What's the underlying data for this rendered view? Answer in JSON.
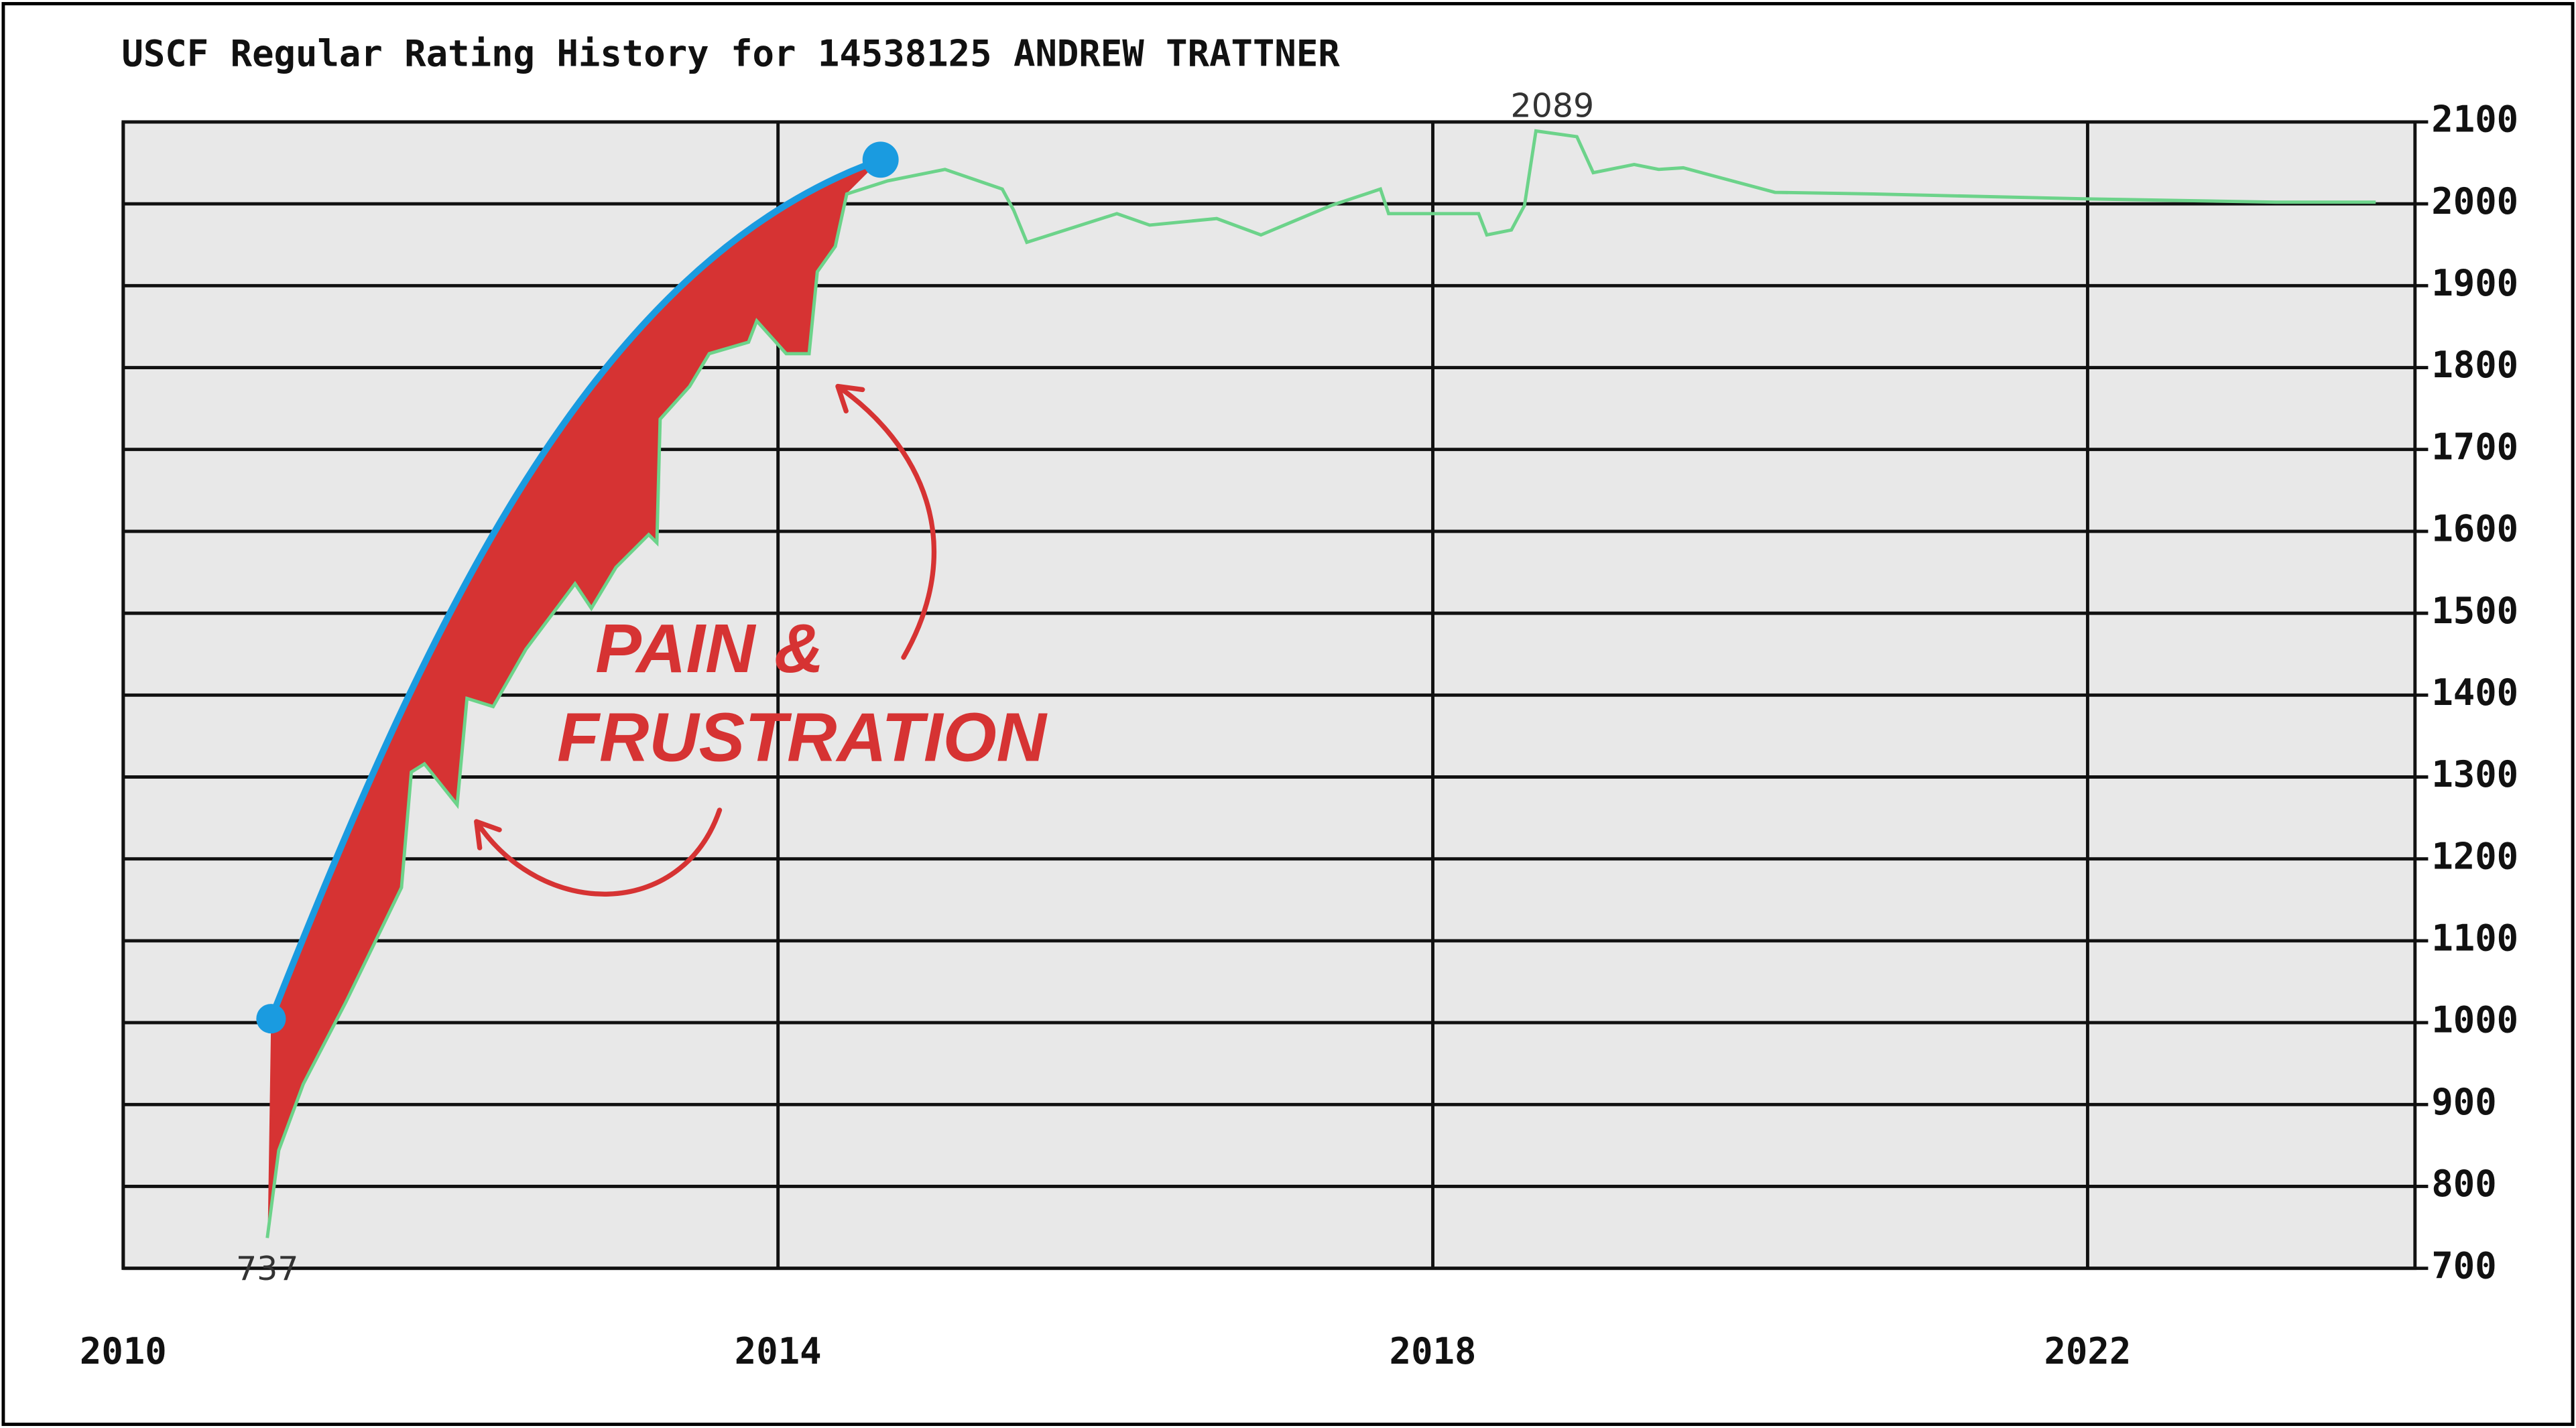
{
  "chart_data": {
    "type": "line",
    "title": "USCF Regular Rating History for 14538125 ANDREW TRATTNER",
    "x": [
      2010.88,
      2010.95,
      2011.1,
      2011.36,
      2011.7,
      2011.76,
      2011.84,
      2012.04,
      2012.1,
      2012.26,
      2012.46,
      2012.76,
      2012.86,
      2013.01,
      2013.21,
      2013.26,
      2013.28,
      2013.46,
      2013.58,
      2013.82,
      2013.87,
      2014.05,
      2014.19,
      2014.24,
      2014.35,
      2014.42,
      2014.67,
      2015.02,
      2015.37,
      2015.44,
      2015.52,
      2016.07,
      2016.27,
      2016.68,
      2016.95,
      2017.38,
      2017.68,
      2017.73,
      2018.28,
      2018.33,
      2018.48,
      2018.56,
      2018.63,
      2018.88,
      2018.98,
      2019.23,
      2019.38,
      2019.53,
      2020.09,
      2020.69,
      2022.0,
      2023.15,
      2023.76
    ],
    "values": [
      737,
      844,
      925,
      1025,
      1165,
      1306,
      1316,
      1266,
      1396,
      1386,
      1456,
      1536,
      1506,
      1556,
      1596,
      1586,
      1737,
      1777,
      1817,
      1831,
      1857,
      1817,
      1817,
      1917,
      1948,
      2012,
      2028,
      2042,
      2018,
      1992,
      1953,
      1988,
      1974,
      1982,
      1962,
      1998,
      2018,
      1988,
      1988,
      1962,
      1968,
      1998,
      2089,
      2082,
      2038,
      2048,
      2042,
      2044,
      2014,
      2012,
      2006,
      2002,
      2002
    ],
    "color": "#6cd38a",
    "xlim": [
      2010,
      2024
    ],
    "xticks": [
      2010,
      2014,
      2018,
      2022
    ],
    "ylim": [
      700,
      2100
    ],
    "yticks": [
      700,
      800,
      900,
      1000,
      1100,
      1200,
      1300,
      1400,
      1500,
      1600,
      1700,
      1800,
      1900,
      2000,
      2100
    ],
    "grid": true,
    "annotation": [
      "PAIN &",
      "FRUSTRATION"
    ]
  }
}
